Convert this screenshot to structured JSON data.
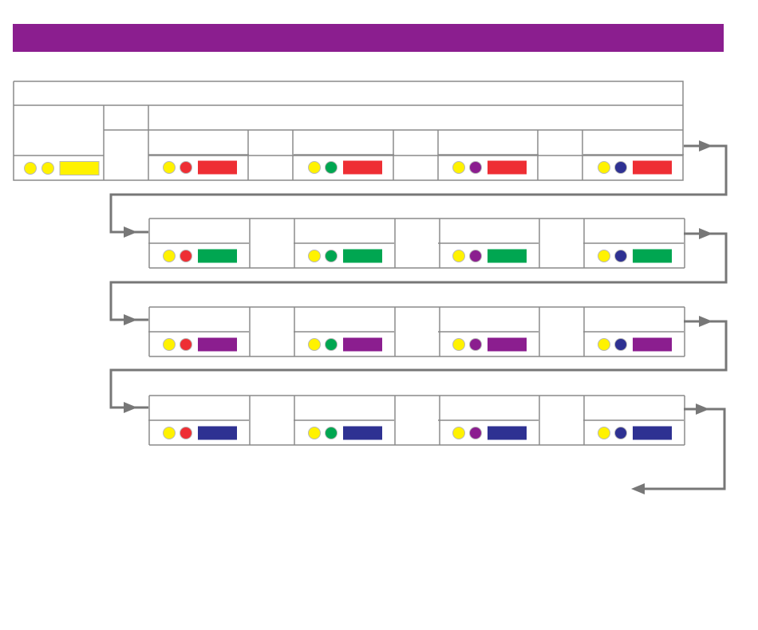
{
  "header": {
    "title": ""
  },
  "colors": {
    "title_bar": "#8b1e8f",
    "outline": "#8a8a8a",
    "arrow": "#777777",
    "yellow": "#fff200",
    "red": "#ee2e34",
    "green": "#00a651",
    "purple": "#8b1e8f",
    "blue": "#2e3192"
  },
  "start": {
    "dots": [
      "yellow",
      "yellow"
    ],
    "bar": "yellow"
  },
  "rows": [
    {
      "bar": "red",
      "cells": [
        {
          "dots": [
            "yellow",
            "red"
          ]
        },
        {
          "dots": [
            "yellow",
            "green"
          ]
        },
        {
          "dots": [
            "yellow",
            "purple"
          ]
        },
        {
          "dots": [
            "yellow",
            "blue"
          ]
        }
      ]
    },
    {
      "bar": "green",
      "cells": [
        {
          "dots": [
            "yellow",
            "red"
          ]
        },
        {
          "dots": [
            "yellow",
            "green"
          ]
        },
        {
          "dots": [
            "yellow",
            "purple"
          ]
        },
        {
          "dots": [
            "yellow",
            "blue"
          ]
        }
      ]
    },
    {
      "bar": "purple",
      "cells": [
        {
          "dots": [
            "yellow",
            "red"
          ]
        },
        {
          "dots": [
            "yellow",
            "green"
          ]
        },
        {
          "dots": [
            "yellow",
            "purple"
          ]
        },
        {
          "dots": [
            "yellow",
            "blue"
          ]
        }
      ]
    },
    {
      "bar": "blue",
      "cells": [
        {
          "dots": [
            "yellow",
            "red"
          ]
        },
        {
          "dots": [
            "yellow",
            "green"
          ]
        },
        {
          "dots": [
            "yellow",
            "purple"
          ]
        },
        {
          "dots": [
            "yellow",
            "blue"
          ]
        }
      ]
    }
  ]
}
